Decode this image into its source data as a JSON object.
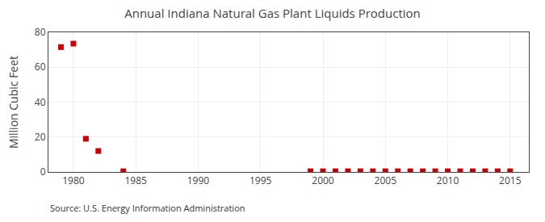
{
  "chart_data": {
    "type": "scatter",
    "title": "Annual Indiana Natural Gas Plant Liquids Production",
    "ylabel": "Million Cubic Feet",
    "annotations": [
      "Source: U.S. Energy Information Administration"
    ],
    "x": [
      1979,
      1980,
      1981,
      1982,
      1984,
      1999,
      2000,
      2001,
      2002,
      2003,
      2004,
      2005,
      2006,
      2007,
      2008,
      2009,
      2010,
      2011,
      2012,
      2013,
      2014,
      2015
    ],
    "values": [
      71.5,
      73.5,
      19.0,
      12.0,
      0.4,
      0.4,
      0.4,
      0.4,
      0.4,
      0.4,
      0.4,
      0.4,
      0.4,
      0.4,
      0.4,
      0.4,
      0.4,
      0.4,
      0.4,
      0.4,
      0.4,
      0.4
    ],
    "color": "#cc0000",
    "marker": "square",
    "xlim": [
      1978,
      2016.5
    ],
    "xticks": [
      1980,
      1985,
      1990,
      1995,
      2000,
      2005,
      2010,
      2015
    ],
    "ylim": [
      0,
      80
    ],
    "yticks": [
      0,
      20,
      40,
      60,
      80
    ],
    "grid": true
  }
}
